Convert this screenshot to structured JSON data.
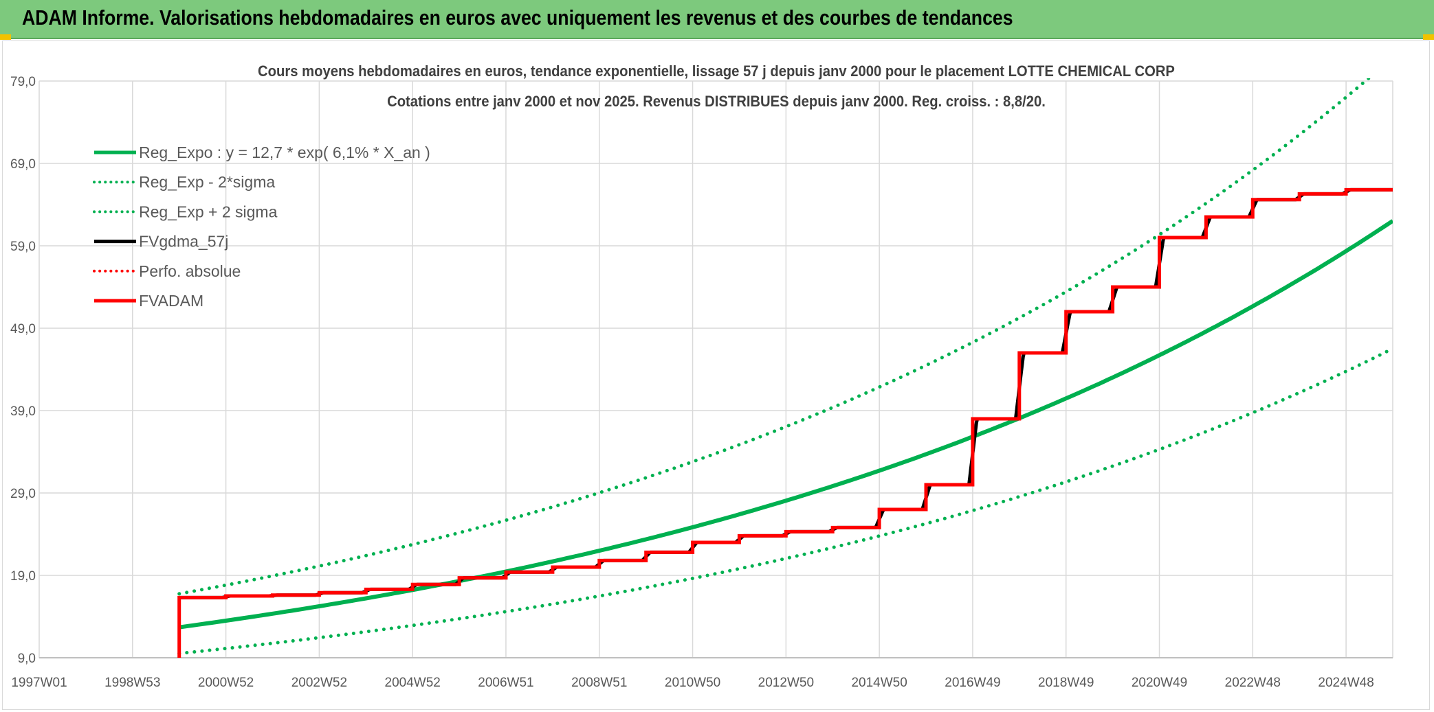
{
  "banner": {
    "title": "ADAM Informe. Valorisations hebdomadaires en euros avec uniquement les revenus et des courbes de tendances"
  },
  "colors": {
    "banner_bg": "#7dc97d",
    "trend_green": "#00b050",
    "fv_black": "#000000",
    "adam_red": "#ff0000",
    "grid": "#d9d9d9",
    "axis_text": "#595959",
    "title_text": "#404040"
  },
  "chart_data": {
    "type": "line",
    "title": "Cours moyens hebdomadaires en euros, tendance exponentielle, lissage 57 j depuis janv 2000 pour le placement LOTTE CHEMICAL CORP",
    "subtitle": "Cotations entre janv 2000 et nov 2025. Revenus DISTRIBUES depuis janv 2000. Reg. croiss. : 8,8/20.",
    "xlabel": "",
    "ylabel": "",
    "x_ticks": [
      "1997W01",
      "1998W53",
      "2000W52",
      "2002W52",
      "2004W52",
      "2006W51",
      "2008W51",
      "2010W50",
      "2012W50",
      "2014W50",
      "2016W49",
      "2018W49",
      "2020W49",
      "2022W48",
      "2024W48"
    ],
    "x_tick_years": [
      1997.0,
      1999.0,
      2001.0,
      2003.0,
      2005.0,
      2007.0,
      2009.0,
      2011.0,
      2013.0,
      2015.0,
      2017.0,
      2019.0,
      2021.0,
      2023.0,
      2025.0
    ],
    "xlim": [
      1997.0,
      2026.0
    ],
    "y_ticks": [
      "9,0",
      "19,0",
      "29,0",
      "39,0",
      "49,0",
      "59,0",
      "69,0",
      "79,0"
    ],
    "y_tick_values": [
      9,
      19,
      29,
      39,
      49,
      59,
      69,
      79
    ],
    "ylim": [
      9,
      79
    ],
    "grid": true,
    "legend_position": "top-left",
    "legend": [
      {
        "label": "Reg_Expo : y = 12,7 * exp( 6,1% *  X_an )",
        "style": "solid",
        "color": "#00b050"
      },
      {
        "label": "Reg_Exp - 2*sigma",
        "style": "dotted",
        "color": "#00b050"
      },
      {
        "label": "Reg_Exp + 2 sigma",
        "style": "dotted",
        "color": "#00b050"
      },
      {
        "label": "FVgdma_57j",
        "style": "solid",
        "color": "#000000"
      },
      {
        "label": "Perfo. absolue",
        "style": "dotted",
        "color": "#ff0000"
      },
      {
        "label": "FVADAM",
        "style": "solid",
        "color": "#ff0000"
      }
    ],
    "regression": {
      "start_year": 2000.0,
      "end_year": 2026.0,
      "base": 12.7,
      "rate": 0.061,
      "sigma_factor_minus": 0.75,
      "sigma_factor_plus": 1.32
    },
    "series": [
      {
        "name": "FVADAM",
        "color": "#ff0000",
        "points": [
          [
            2000.0,
            9.0
          ],
          [
            2000.0,
            16.3
          ],
          [
            2001.0,
            16.3
          ],
          [
            2001.0,
            16.5
          ],
          [
            2002.0,
            16.5
          ],
          [
            2002.0,
            16.6
          ],
          [
            2003.0,
            16.6
          ],
          [
            2003.0,
            16.9
          ],
          [
            2004.0,
            16.9
          ],
          [
            2004.0,
            17.3
          ],
          [
            2005.0,
            17.3
          ],
          [
            2005.0,
            17.9
          ],
          [
            2006.0,
            17.9
          ],
          [
            2006.0,
            18.7
          ],
          [
            2007.0,
            18.7
          ],
          [
            2007.0,
            19.4
          ],
          [
            2008.0,
            19.4
          ],
          [
            2008.0,
            20.0
          ],
          [
            2009.0,
            20.0
          ],
          [
            2009.0,
            20.8
          ],
          [
            2010.0,
            20.8
          ],
          [
            2010.0,
            21.8
          ],
          [
            2011.0,
            21.8
          ],
          [
            2011.0,
            23.0
          ],
          [
            2012.0,
            23.0
          ],
          [
            2012.0,
            23.8
          ],
          [
            2013.0,
            23.8
          ],
          [
            2013.0,
            24.3
          ],
          [
            2014.0,
            24.3
          ],
          [
            2014.0,
            24.8
          ],
          [
            2015.0,
            24.8
          ],
          [
            2015.0,
            27.0
          ],
          [
            2016.0,
            27.0
          ],
          [
            2016.0,
            30.0
          ],
          [
            2017.0,
            30.0
          ],
          [
            2017.0,
            38.0
          ],
          [
            2018.0,
            38.0
          ],
          [
            2018.0,
            46.0
          ],
          [
            2019.0,
            46.0
          ],
          [
            2019.0,
            51.0
          ],
          [
            2020.0,
            51.0
          ],
          [
            2020.0,
            54.0
          ],
          [
            2021.0,
            54.0
          ],
          [
            2021.0,
            60.0
          ],
          [
            2022.0,
            60.0
          ],
          [
            2022.0,
            62.5
          ],
          [
            2023.0,
            62.5
          ],
          [
            2023.0,
            64.6
          ],
          [
            2024.0,
            64.6
          ],
          [
            2024.0,
            65.3
          ],
          [
            2025.0,
            65.3
          ],
          [
            2025.0,
            65.8
          ],
          [
            2026.0,
            65.8
          ]
        ]
      }
    ]
  }
}
